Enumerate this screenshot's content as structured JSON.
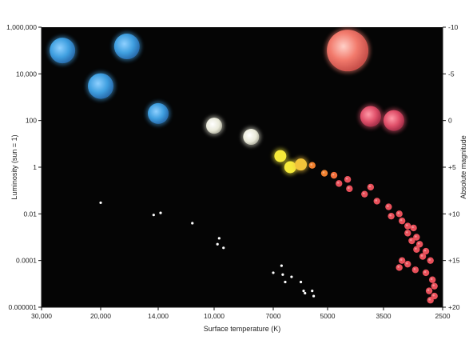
{
  "chart_data": {
    "type": "scatter",
    "title": "",
    "xlabel": "Surface temperature (K)",
    "ylabel": "Luminosity (sun = 1)",
    "y2label": "Absolute magnitude",
    "x_ticks": [
      "30,000",
      "20,000",
      "14,000",
      "10,000",
      "7000",
      "5000",
      "3500",
      "2500"
    ],
    "y_ticks": [
      "1,000,000",
      "10,000",
      "100",
      "1",
      "0.01",
      "0.0001",
      "0.000001"
    ],
    "y2_ticks": [
      "-10",
      "-5",
      "0",
      "+5",
      "+10",
      "+15",
      "+20"
    ],
    "x_scale": "ordinal-tick (temperature, decreasing left to right)",
    "y_scale": "log",
    "ylim": [
      1e-06,
      1000000
    ],
    "background": "#050505",
    "grid": false,
    "stars": [
      {
        "group": "supergiant",
        "t": 26000,
        "l": 100000,
        "color": "#3f9fe0",
        "size": "large"
      },
      {
        "group": "supergiant",
        "t": 17000,
        "l": 150000,
        "color": "#3f9fe0",
        "size": "large"
      },
      {
        "group": "supergiant",
        "t": 20000,
        "l": 3000,
        "color": "#3f9fe0",
        "size": "large"
      },
      {
        "group": "supergiant",
        "t": 14000,
        "l": 200,
        "color": "#3f9fe0",
        "size": "medium"
      },
      {
        "group": "supergiant",
        "t": 4400,
        "l": 100000,
        "color": "#f27a6c",
        "size": "huge"
      },
      {
        "group": "giant",
        "t": 3800,
        "l": 150,
        "color": "#e0506a",
        "size": "medium"
      },
      {
        "group": "giant",
        "t": 3300,
        "l": 100,
        "color": "#e0506a",
        "size": "medium"
      },
      {
        "group": "main-sequence",
        "t": 10000,
        "l": 60,
        "color": "#e8e8d8",
        "size": "small"
      },
      {
        "group": "main-sequence",
        "t": 8000,
        "l": 20,
        "color": "#e8e8d8",
        "size": "small"
      },
      {
        "group": "main-sequence",
        "t": 6700,
        "l": 3,
        "color": "#f5ea3a",
        "size": "xsmall"
      },
      {
        "group": "main-sequence",
        "t": 6300,
        "l": 1,
        "color": "#f5ea3a",
        "size": "xsmall"
      },
      {
        "group": "main-sequence",
        "t": 5900,
        "l": 1.3,
        "color": "#f2c43a",
        "size": "xsmall"
      },
      {
        "group": "main-sequence",
        "t": 5500,
        "l": 1.2,
        "color": "#f0802e",
        "size": "dot"
      },
      {
        "group": "main-sequence",
        "t": 5100,
        "l": 0.55,
        "color": "#f0802e",
        "size": "dot"
      },
      {
        "group": "main-sequence",
        "t": 4800,
        "l": 0.45,
        "color": "#f06e3a",
        "size": "dot"
      },
      {
        "group": "main-sequence",
        "t": 4650,
        "l": 0.2,
        "color": "#e8505a",
        "size": "dot"
      },
      {
        "group": "main-sequence",
        "t": 4400,
        "l": 0.3,
        "color": "#e8505a",
        "size": "dot"
      },
      {
        "group": "main-sequence",
        "t": 4350,
        "l": 0.12,
        "color": "#e8505a",
        "size": "dot"
      },
      {
        "group": "main-sequence",
        "t": 3950,
        "l": 0.07,
        "color": "#e8505a",
        "size": "dot"
      },
      {
        "group": "main-sequence",
        "t": 3800,
        "l": 0.14,
        "color": "#e8505a",
        "size": "dot"
      },
      {
        "group": "main-sequence",
        "t": 3650,
        "l": 0.035,
        "color": "#e8505a",
        "size": "dot"
      },
      {
        "group": "main-sequence",
        "t": 3400,
        "l": 0.02,
        "color": "#e8505a",
        "size": "dot"
      },
      {
        "group": "main-sequence",
        "t": 3200,
        "l": 0.01,
        "color": "#e8505a",
        "size": "dot"
      },
      {
        "group": "main-sequence",
        "t": 3350,
        "l": 0.008,
        "color": "#e8505a",
        "size": "dot"
      },
      {
        "group": "main-sequence",
        "t": 3150,
        "l": 0.005,
        "color": "#e8505a",
        "size": "dot"
      },
      {
        "group": "main-sequence",
        "t": 3050,
        "l": 0.003,
        "color": "#e8505a",
        "size": "dot"
      },
      {
        "group": "main-sequence",
        "t": 2950,
        "l": 0.0025,
        "color": "#e8505a",
        "size": "dot"
      },
      {
        "group": "main-sequence",
        "t": 3050,
        "l": 0.0015,
        "color": "#e8505a",
        "size": "dot"
      },
      {
        "group": "main-sequence",
        "t": 2900,
        "l": 0.001,
        "color": "#e8505a",
        "size": "dot"
      },
      {
        "group": "main-sequence",
        "t": 2980,
        "l": 0.0007,
        "color": "#e8505a",
        "size": "dot"
      },
      {
        "group": "main-sequence",
        "t": 2850,
        "l": 0.0005,
        "color": "#e8505a",
        "size": "dot"
      },
      {
        "group": "main-sequence",
        "t": 2900,
        "l": 0.0003,
        "color": "#e8505a",
        "size": "dot"
      },
      {
        "group": "main-sequence",
        "t": 2750,
        "l": 0.00025,
        "color": "#e8505a",
        "size": "dot"
      },
      {
        "group": "main-sequence",
        "t": 2800,
        "l": 0.00015,
        "color": "#e8505a",
        "size": "dot"
      },
      {
        "group": "main-sequence",
        "t": 3150,
        "l": 0.0001,
        "color": "#e8505a",
        "size": "dot"
      },
      {
        "group": "main-sequence",
        "t": 3050,
        "l": 7e-05,
        "color": "#e8505a",
        "size": "dot"
      },
      {
        "group": "main-sequence",
        "t": 2680,
        "l": 0.0001,
        "color": "#e8505a",
        "size": "dot"
      },
      {
        "group": "main-sequence",
        "t": 2920,
        "l": 4e-05,
        "color": "#e8505a",
        "size": "dot"
      },
      {
        "group": "main-sequence",
        "t": 3200,
        "l": 5e-05,
        "color": "#e8505a",
        "size": "dot"
      },
      {
        "group": "main-sequence",
        "t": 2750,
        "l": 3e-05,
        "color": "#e8505a",
        "size": "dot"
      },
      {
        "group": "main-sequence",
        "t": 2650,
        "l": 1.5e-05,
        "color": "#e8505a",
        "size": "dot"
      },
      {
        "group": "main-sequence",
        "t": 2620,
        "l": 8e-06,
        "color": "#e8505a",
        "size": "dot"
      },
      {
        "group": "main-sequence",
        "t": 2700,
        "l": 5e-06,
        "color": "#e8505a",
        "size": "dot"
      },
      {
        "group": "main-sequence",
        "t": 2620,
        "l": 3e-06,
        "color": "#e8505a",
        "size": "dot"
      },
      {
        "group": "main-sequence",
        "t": 2680,
        "l": 2e-06,
        "color": "#e8505a",
        "size": "dot"
      },
      {
        "group": "white-dwarf",
        "t": 20000,
        "l": 0.03,
        "color": "#ffffff",
        "size": "tiny"
      },
      {
        "group": "white-dwarf",
        "t": 14400,
        "l": 0.009,
        "color": "#ffffff",
        "size": "tiny"
      },
      {
        "group": "white-dwarf",
        "t": 13800,
        "l": 0.011,
        "color": "#ffffff",
        "size": "tiny"
      },
      {
        "group": "white-dwarf",
        "t": 11400,
        "l": 0.004,
        "color": "#ffffff",
        "size": "tiny"
      },
      {
        "group": "white-dwarf",
        "t": 9700,
        "l": 0.0009,
        "color": "#ffffff",
        "size": "tiny"
      },
      {
        "group": "white-dwarf",
        "t": 9800,
        "l": 0.0005,
        "color": "#ffffff",
        "size": "tiny"
      },
      {
        "group": "white-dwarf",
        "t": 9450,
        "l": 0.00035,
        "color": "#ffffff",
        "size": "tiny"
      },
      {
        "group": "white-dwarf",
        "t": 7000,
        "l": 3e-05,
        "color": "#ffffff",
        "size": "tiny"
      },
      {
        "group": "white-dwarf",
        "t": 6650,
        "l": 6e-05,
        "color": "#ffffff",
        "size": "tiny"
      },
      {
        "group": "white-dwarf",
        "t": 6600,
        "l": 2.5e-05,
        "color": "#ffffff",
        "size": "tiny"
      },
      {
        "group": "white-dwarf",
        "t": 6500,
        "l": 1.2e-05,
        "color": "#ffffff",
        "size": "tiny"
      },
      {
        "group": "white-dwarf",
        "t": 6250,
        "l": 2e-05,
        "color": "#ffffff",
        "size": "tiny"
      },
      {
        "group": "white-dwarf",
        "t": 5900,
        "l": 1.2e-05,
        "color": "#ffffff",
        "size": "tiny"
      },
      {
        "group": "white-dwarf",
        "t": 5800,
        "l": 5e-06,
        "color": "#ffffff",
        "size": "tiny"
      },
      {
        "group": "white-dwarf",
        "t": 5750,
        "l": 4e-06,
        "color": "#ffffff",
        "size": "tiny"
      },
      {
        "group": "white-dwarf",
        "t": 5500,
        "l": 5e-06,
        "color": "#ffffff",
        "size": "tiny"
      },
      {
        "group": "white-dwarf",
        "t": 5450,
        "l": 3e-06,
        "color": "#ffffff",
        "size": "tiny"
      }
    ]
  }
}
